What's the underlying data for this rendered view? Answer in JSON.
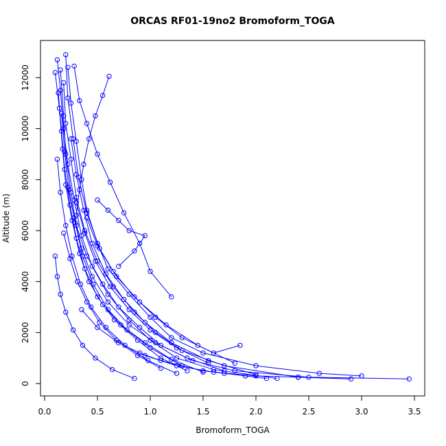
{
  "chart_data": {
    "type": "scatter",
    "title": "ORCAS RF01-19no2 Bromoform_TOGA",
    "xlabel": "Bromoform_TOGA",
    "ylabel": "Altitude (m)",
    "xlim": [
      0,
      3.5
    ],
    "ylim": [
      0,
      13000
    ],
    "x_ticks": [
      0.0,
      0.5,
      1.0,
      1.5,
      2.0,
      2.5,
      3.0,
      3.5
    ],
    "x_tick_labels": [
      "0.0",
      "0.5",
      "1.0",
      "1.5",
      "2.0",
      "2.5",
      "3.0",
      "3.5"
    ],
    "y_ticks": [
      0,
      2000,
      4000,
      6000,
      8000,
      10000,
      12000
    ],
    "y_tick_labels": [
      "0",
      "2000",
      "4000",
      "6000",
      "8000",
      "10000",
      "12000"
    ],
    "grid": false,
    "legend": "none",
    "marker": "open-circle",
    "connect_points": true,
    "series_color": "#0000ff",
    "series": [
      {
        "x": [
          0.22,
          0.25,
          0.3,
          0.35,
          0.4,
          0.5,
          0.6,
          0.8,
          1.0,
          1.2,
          1.5,
          2.0,
          2.6,
          3.0
        ],
        "y": [
          12400,
          11000,
          9500,
          8000,
          6800,
          5500,
          4500,
          3500,
          2600,
          1800,
          1200,
          700,
          400,
          300
        ]
      },
      {
        "x": [
          0.15,
          0.18,
          0.2,
          0.25,
          0.3,
          0.4,
          0.55,
          0.7,
          0.9,
          1.1,
          1.4,
          1.8,
          2.5,
          3.45
        ],
        "y": [
          12300,
          10500,
          9000,
          7500,
          6200,
          5000,
          3900,
          3000,
          2200,
          1500,
          900,
          500,
          250,
          180
        ]
      },
      {
        "x": [
          0.12,
          0.15,
          0.18,
          0.22,
          0.28,
          0.35,
          0.45,
          0.6,
          0.8,
          1.0,
          1.25,
          1.6,
          2.2
        ],
        "y": [
          12700,
          11500,
          10000,
          8600,
          7200,
          5800,
          4600,
          3500,
          2500,
          1700,
          1000,
          550,
          200
        ]
      },
      {
        "x": [
          0.18,
          0.2,
          0.25,
          0.3,
          0.38,
          0.5,
          0.65,
          0.85,
          1.05,
          1.3,
          1.7,
          2.4
        ],
        "y": [
          11800,
          10200,
          8800,
          7300,
          6000,
          4800,
          3800,
          2800,
          2000,
          1300,
          700,
          250
        ]
      },
      {
        "x": [
          0.1,
          0.14,
          0.17,
          0.2,
          0.26,
          0.33,
          0.42,
          0.55,
          0.72,
          0.95,
          1.2,
          1.5
        ],
        "y": [
          12200,
          10800,
          9200,
          7800,
          6400,
          5100,
          4000,
          3100,
          2300,
          1600,
          950,
          450
        ]
      },
      {
        "x": [
          0.2,
          0.22,
          0.27,
          0.32,
          0.4,
          0.52,
          0.68,
          0.9,
          1.15,
          1.45,
          1.8
        ],
        "y": [
          12900,
          11200,
          9600,
          8100,
          6700,
          5300,
          4200,
          3200,
          2300,
          1500,
          800
        ]
      },
      {
        "x": [
          0.13,
          0.16,
          0.19,
          0.24,
          0.3,
          0.38,
          0.5,
          0.66,
          0.88,
          1.1,
          1.35
        ],
        "y": [
          11400,
          9900,
          8400,
          7000,
          5700,
          4500,
          3400,
          2500,
          1700,
          1000,
          500
        ]
      },
      {
        "x": [
          0.16,
          0.19,
          0.23,
          0.29,
          0.36,
          0.46,
          0.6,
          0.78,
          1.0,
          1.3
        ],
        "y": [
          10600,
          9100,
          7600,
          6300,
          5000,
          3900,
          2900,
          2100,
          1400,
          700
        ]
      },
      {
        "x": [
          0.25,
          0.3,
          0.37,
          0.45,
          0.58,
          0.75,
          0.95,
          1.2,
          1.55,
          2.0
        ],
        "y": [
          9600,
          8200,
          6800,
          5500,
          4300,
          3300,
          2400,
          1600,
          900,
          350
        ]
      },
      {
        "x": [
          0.12,
          0.15,
          0.2,
          0.26,
          0.34,
          0.44,
          0.58,
          0.76,
          0.98,
          1.25
        ],
        "y": [
          8800,
          7500,
          6200,
          5000,
          3900,
          3000,
          2200,
          1500,
          900,
          400
        ]
      },
      {
        "x": [
          0.22,
          0.28,
          0.35,
          0.45,
          0.6,
          0.8,
          1.05,
          1.35,
          1.7
        ],
        "y": [
          7700,
          6500,
          5300,
          4200,
          3200,
          2300,
          1600,
          1000,
          500
        ]
      },
      {
        "x": [
          0.3,
          0.38,
          0.48,
          0.62,
          0.8,
          1.0,
          1.25,
          1.55
        ],
        "y": [
          7100,
          5900,
          4800,
          3800,
          2900,
          2100,
          1400,
          800
        ]
      },
      {
        "x": [
          0.4,
          0.5,
          0.65,
          0.85,
          1.05,
          1.3,
          1.6,
          1.85
        ],
        "y": [
          6500,
          5400,
          4400,
          3400,
          2600,
          1800,
          1200,
          1500
        ]
      },
      {
        "x": [
          0.18,
          0.24,
          0.31,
          0.4,
          0.52,
          0.68,
          0.88,
          1.1
        ],
        "y": [
          5900,
          4900,
          4000,
          3200,
          2400,
          1700,
          1100,
          600
        ]
      },
      {
        "x": [
          0.1,
          0.12,
          0.15,
          0.2,
          0.27,
          0.36,
          0.48,
          0.64,
          0.85
        ],
        "y": [
          5000,
          4200,
          3500,
          2800,
          2100,
          1500,
          1000,
          550,
          200
        ]
      },
      {
        "x": [
          0.5,
          0.6,
          0.7,
          0.8,
          0.95,
          0.85,
          0.7
        ],
        "y": [
          7200,
          6800,
          6400,
          6000,
          5800,
          5200,
          4600
        ]
      },
      {
        "x": [
          0.28,
          0.33,
          0.4,
          0.5,
          0.62,
          0.75,
          0.9,
          1.0,
          1.2
        ],
        "y": [
          12450,
          11100,
          10200,
          9000,
          7900,
          6700,
          5500,
          4400,
          3400
        ]
      },
      {
        "x": [
          0.61,
          0.55,
          0.48,
          0.42,
          0.37,
          0.33,
          0.3
        ],
        "y": [
          12050,
          11300,
          10500,
          9600,
          8600,
          7600,
          6600
        ]
      },
      {
        "x": [
          0.9,
          1.1,
          1.3,
          1.5,
          1.7,
          1.9,
          2.1
        ],
        "y": [
          1200,
          900,
          700,
          500,
          400,
          300,
          200
        ]
      },
      {
        "x": [
          0.35,
          0.5,
          0.7,
          0.95,
          1.25,
          1.6,
          2.0,
          2.4,
          2.9
        ],
        "y": [
          2900,
          2200,
          1600,
          1100,
          700,
          450,
          300,
          250,
          180
        ]
      }
    ]
  }
}
